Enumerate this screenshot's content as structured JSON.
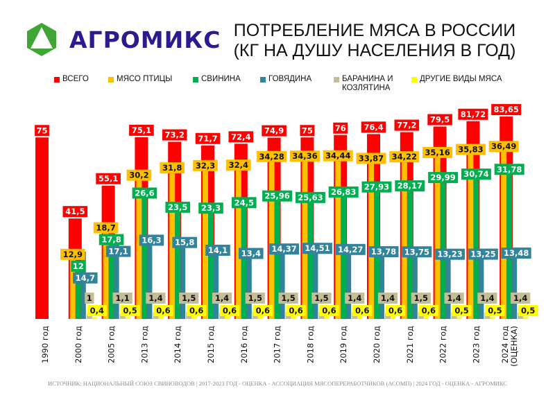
{
  "brand": {
    "name": "АГРОМИКС",
    "logo_color": "#2b1b8f",
    "logo_mark_color": "#3fa535"
  },
  "title": {
    "line1": "ПОТРЕБЛЕНИЕ МЯСА В РОССИИ",
    "line2": "(КГ НА ДУШУ НАСЕЛЕНИЯ В ГОД)"
  },
  "footer": "ИСТОЧНИК: НАЦИОНАЛЬНЫЙ СОЮЗ СВИНОВОДОВ | 2017-2023 ГОД - ОЦЕНКА - АССОЦИАЦИЯ МЯСОПЕРЕРАБОТЧИКОВ (АСОМП) | 2024 ГОД - ОЦЕНКА - АГРОМИКС",
  "chart_data": {
    "type": "bar",
    "title": "ПОТРЕБЛЕНИЕ МЯСА В РОССИИ (КГ НА ДУШУ НАСЕЛЕНИЯ В ГОД)",
    "legend_position": "top",
    "grid": false,
    "ylim": [
      0,
      85
    ],
    "categories": [
      "1990 год",
      "2000 год",
      "2005 год",
      "2013 год",
      "2014 год",
      "2015 год",
      "2016 год",
      "2017 год",
      "2018 год",
      "2019 год",
      "2020 год",
      "2021 год",
      "2022 год",
      "2023 год",
      "2024 год (ОЦЕНКА)"
    ],
    "series": [
      {
        "name": "ВСЕГО",
        "color": "#ff0000",
        "labels": [
          "75",
          "41,5",
          "55,1",
          "75,1",
          "73,2",
          "71,7",
          "72,4",
          "74,9",
          "75",
          "76",
          "76,4",
          "77,2",
          "79,5",
          "81,72",
          "83,65"
        ],
        "values": [
          75,
          41.5,
          55.1,
          75.1,
          73.2,
          71.7,
          72.4,
          74.9,
          75,
          76,
          76.4,
          77.2,
          79.5,
          81.72,
          83.65
        ]
      },
      {
        "name": "МЯСО ПТИЦЫ",
        "color": "#ffc000",
        "labels": [
          null,
          "12,9",
          "18,7",
          "30,2",
          "31,8",
          "32,3",
          "32,4",
          "34,28",
          "34,36",
          "34,44",
          "33,87",
          "34,22",
          "35,16",
          "35,83",
          "36,49"
        ],
        "values": [
          null,
          12.9,
          18.7,
          30.2,
          31.8,
          32.3,
          32.4,
          34.28,
          34.36,
          34.44,
          33.87,
          34.22,
          35.16,
          35.83,
          36.49
        ]
      },
      {
        "name": "СВИНИНА",
        "color": "#00b050",
        "labels": [
          null,
          "12",
          "17,8",
          "26,6",
          "23,5",
          "23,3",
          "24,5",
          "25,96",
          "25,63",
          "26,83",
          "27,93",
          "28,17",
          "29,99",
          "30,74",
          "31,78"
        ],
        "values": [
          null,
          12,
          17.8,
          26.6,
          23.5,
          23.3,
          24.5,
          25.96,
          25.63,
          26.83,
          27.93,
          28.17,
          29.99,
          30.74,
          31.78
        ]
      },
      {
        "name": "ГОВЯДИНА",
        "color": "#31849b",
        "labels": [
          null,
          "14,7",
          "17,1",
          "16,3",
          "15,8",
          "14,1",
          "13,4",
          "14,37",
          "14,51",
          "14,27",
          "13,78",
          "13,75",
          "13,23",
          "13,25",
          "13,48"
        ],
        "values": [
          null,
          14.7,
          17.1,
          16.3,
          15.8,
          14.1,
          13.4,
          14.37,
          14.51,
          14.27,
          13.78,
          13.75,
          13.23,
          13.25,
          13.48
        ]
      },
      {
        "name": "БАРАНИНА И КОЗЛЯТИНА",
        "color": "#c4bd97",
        "labels": [
          null,
          "1",
          "1,1",
          "1,4",
          "1,5",
          "1,4",
          "1,5",
          "1,5",
          "1,5",
          "1,4",
          "1,4",
          "1,5",
          "1,4",
          "1,4",
          "1,4"
        ],
        "values": [
          null,
          1,
          1.1,
          1.4,
          1.5,
          1.4,
          1.5,
          1.5,
          1.5,
          1.4,
          1.4,
          1.5,
          1.4,
          1.4,
          1.4
        ]
      },
      {
        "name": "ДРУГИЕ ВИДЫ МЯСА",
        "color": "#ffff00",
        "labels": [
          null,
          "0,4",
          "0,5",
          "0,6",
          "0,6",
          "0,6",
          "0,6",
          "0,6",
          "0,6",
          "0,6",
          "0,6",
          "0,6",
          "0,5",
          "0,5",
          "0,5"
        ],
        "values": [
          null,
          0.4,
          0.5,
          0.6,
          0.6,
          0.6,
          0.6,
          0.6,
          0.6,
          0.6,
          0.6,
          0.6,
          0.5,
          0.5,
          0.5
        ]
      }
    ]
  }
}
